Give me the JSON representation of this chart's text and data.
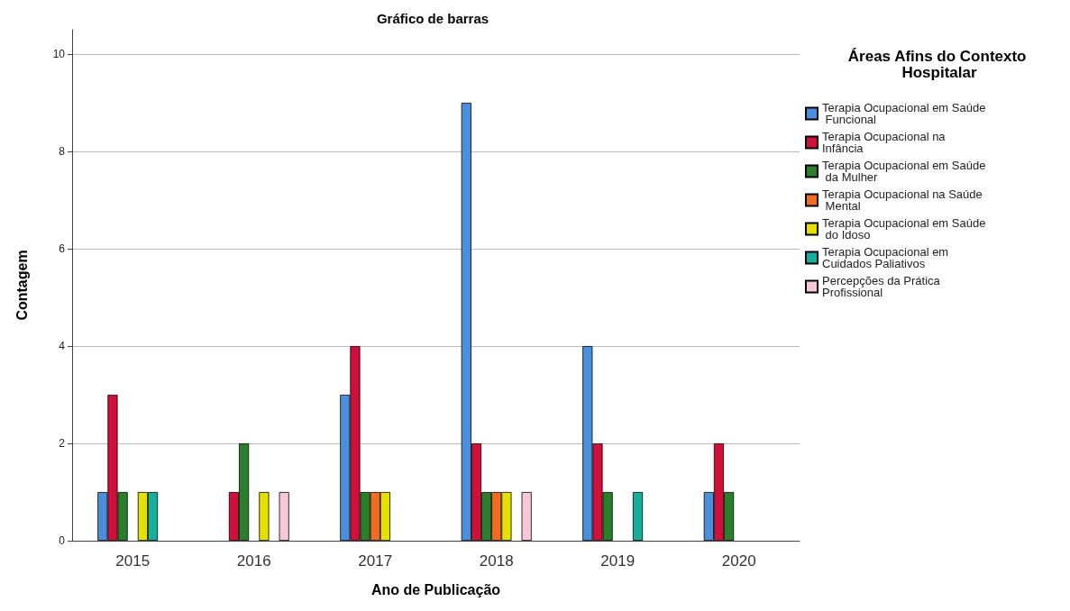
{
  "chart_data": {
    "type": "bar",
    "title": "Gráfico de barras",
    "xlabel": "Ano de Publicação",
    "ylabel": "Contagem",
    "legend_title": "Áreas Afins do Contexto Hospitalar",
    "categories": [
      "2015",
      "2016",
      "2017",
      "2018",
      "2019",
      "2020"
    ],
    "series": [
      {
        "name": "Terapia Ocupacional em Saúde Funcional",
        "color": "#4a8fdc",
        "values": [
          1,
          null,
          3,
          9,
          4,
          1
        ]
      },
      {
        "name": "Terapia Ocupacional na Infância",
        "color": "#d0103a",
        "values": [
          3,
          1,
          4,
          2,
          2,
          2
        ]
      },
      {
        "name": "Terapia Ocupacional em Saúde da Mulher",
        "color": "#2a7f2a",
        "values": [
          1,
          2,
          1,
          1,
          1,
          1
        ]
      },
      {
        "name": "Terapia Ocupacional na Saúde Mental",
        "color": "#f26b22",
        "values": [
          null,
          null,
          1,
          1,
          null,
          null
        ]
      },
      {
        "name": "Terapia Ocupacional em Saúde do Idoso",
        "color": "#e6e000",
        "values": [
          1,
          1,
          1,
          1,
          null,
          null
        ]
      },
      {
        "name": "Terapia Ocupacional em Cuidados Paliativos",
        "color": "#16ae9c",
        "values": [
          1,
          null,
          null,
          null,
          1,
          null
        ]
      },
      {
        "name": "Percepções da Prática Profissional",
        "color": "#f8c8da",
        "values": [
          null,
          1,
          null,
          1,
          null,
          null
        ]
      }
    ],
    "ylim": [
      0,
      10.5
    ],
    "yticks": [
      0,
      2,
      4,
      6,
      8,
      10
    ],
    "grid": "y",
    "legend": "right"
  }
}
